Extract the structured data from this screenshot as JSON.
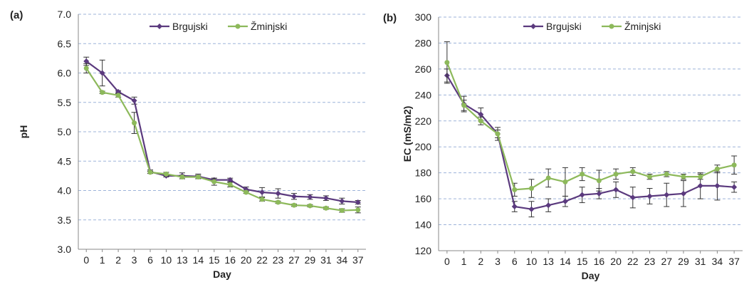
{
  "chart_data": [
    {
      "type": "line",
      "panel_label": "(a)",
      "title": "",
      "xlabel": "Day",
      "ylabel": "pH",
      "categories": [
        "0",
        "1",
        "2",
        "3",
        "6",
        "10",
        "13",
        "14",
        "15",
        "16",
        "20",
        "22",
        "23",
        "27",
        "29",
        "31",
        "34",
        "37"
      ],
      "ylim": [
        3.0,
        7.0
      ],
      "yticks": [
        "3.0",
        "3.5",
        "4.0",
        "4.5",
        "5.0",
        "5.5",
        "6.0",
        "6.5",
        "7.0"
      ],
      "grid": "horizontal dashed",
      "legend": "top-center",
      "series": [
        {
          "name": "Brgujski",
          "color": "#5b3a7e",
          "marker": "diamond",
          "values": [
            6.2,
            6.0,
            5.68,
            5.53,
            4.32,
            4.25,
            4.25,
            4.24,
            4.18,
            4.18,
            4.02,
            3.97,
            3.95,
            3.9,
            3.89,
            3.87,
            3.82,
            3.8
          ],
          "errors": [
            0.07,
            0.22,
            0.02,
            0.06,
            0.03,
            0.02,
            0.05,
            0.04,
            0.03,
            0.03,
            0.04,
            0.08,
            0.08,
            0.05,
            0.04,
            0.04,
            0.05,
            0.03
          ]
        },
        {
          "name": "Žminjski",
          "color": "#8db95b",
          "marker": "circle",
          "values": [
            6.08,
            5.67,
            5.62,
            5.15,
            4.31,
            4.28,
            4.23,
            4.23,
            4.15,
            4.1,
            3.97,
            3.85,
            3.8,
            3.75,
            3.74,
            3.7,
            3.66,
            3.67
          ],
          "errors": [
            0.08,
            0.02,
            0.03,
            0.18,
            0.02,
            0.03,
            0.03,
            0.03,
            0.06,
            0.04,
            0.02,
            0.03,
            0.02,
            0.02,
            0.02,
            0.02,
            0.03,
            0.05
          ]
        }
      ]
    },
    {
      "type": "line",
      "panel_label": "(b)",
      "title": "",
      "xlabel": "Day",
      "ylabel": "EC (mS/m2)",
      "categories": [
        "0",
        "1",
        "2",
        "3",
        "6",
        "10",
        "13",
        "14",
        "15",
        "16",
        "20",
        "22",
        "23",
        "27",
        "29",
        "31",
        "34",
        "37"
      ],
      "ylim": [
        120,
        300
      ],
      "yticks": [
        "120",
        "140",
        "160",
        "180",
        "200",
        "220",
        "240",
        "260",
        "280",
        "300"
      ],
      "grid": "horizontal dashed",
      "legend": "top-center",
      "series": [
        {
          "name": "Brgujski",
          "color": "#5b3a7e",
          "marker": "diamond",
          "values": [
            255,
            233,
            225,
            210,
            154,
            152,
            155,
            158,
            163,
            164,
            167,
            161,
            162,
            163,
            164,
            170,
            170,
            169
          ],
          "errors": [
            5,
            6,
            5,
            5,
            4,
            6,
            5,
            4,
            6,
            4,
            6,
            8,
            6,
            9,
            10,
            10,
            11,
            4
          ]
        },
        {
          "name": "Žminjski",
          "color": "#8db95b",
          "marker": "circle",
          "values": [
            265,
            232,
            220,
            210,
            167,
            168,
            176,
            173,
            179,
            174,
            179,
            181,
            177,
            179,
            177,
            177,
            183,
            186
          ],
          "errors": [
            16,
            4,
            3,
            3,
            5,
            7,
            7,
            11,
            5,
            8,
            4,
            3,
            2,
            2,
            2,
            2,
            3,
            7
          ]
        }
      ]
    }
  ]
}
